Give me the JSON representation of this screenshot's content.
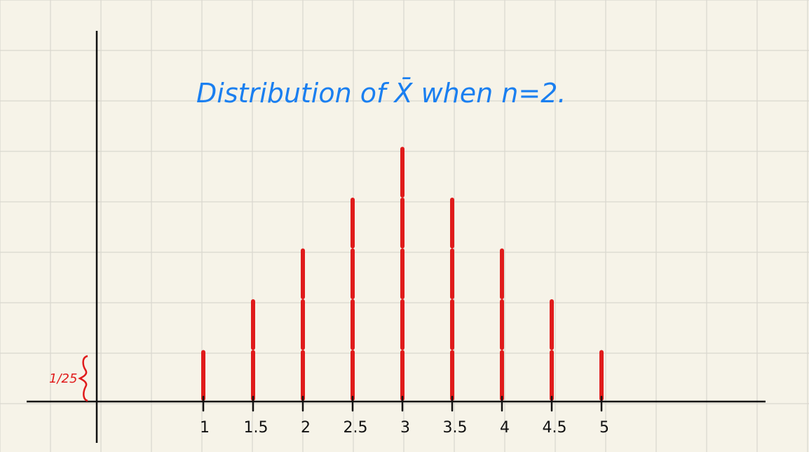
{
  "chart_data": {
    "type": "bar",
    "title": "Distribution of X̄ when n=2.",
    "unit_label": "1/25",
    "x": [
      1,
      1.5,
      2,
      2.5,
      3,
      3.5,
      4,
      4.5,
      5
    ],
    "tick_labels": [
      "1",
      "1.5",
      "2",
      "2.5",
      "3",
      "3.5",
      "4",
      "4.5",
      "5"
    ],
    "values": [
      1,
      2,
      3,
      4,
      5,
      4,
      3,
      2,
      1
    ],
    "value_unit": "1/25",
    "xlabel": "",
    "ylabel": "",
    "ylim": [
      0,
      5
    ],
    "grid": true,
    "legend": "none"
  },
  "colors": {
    "background": "#f6f3e8",
    "grid": "#d9d7cf",
    "bars": "#e01b1b",
    "title": "#1a7ff0",
    "axes": "#111111"
  }
}
